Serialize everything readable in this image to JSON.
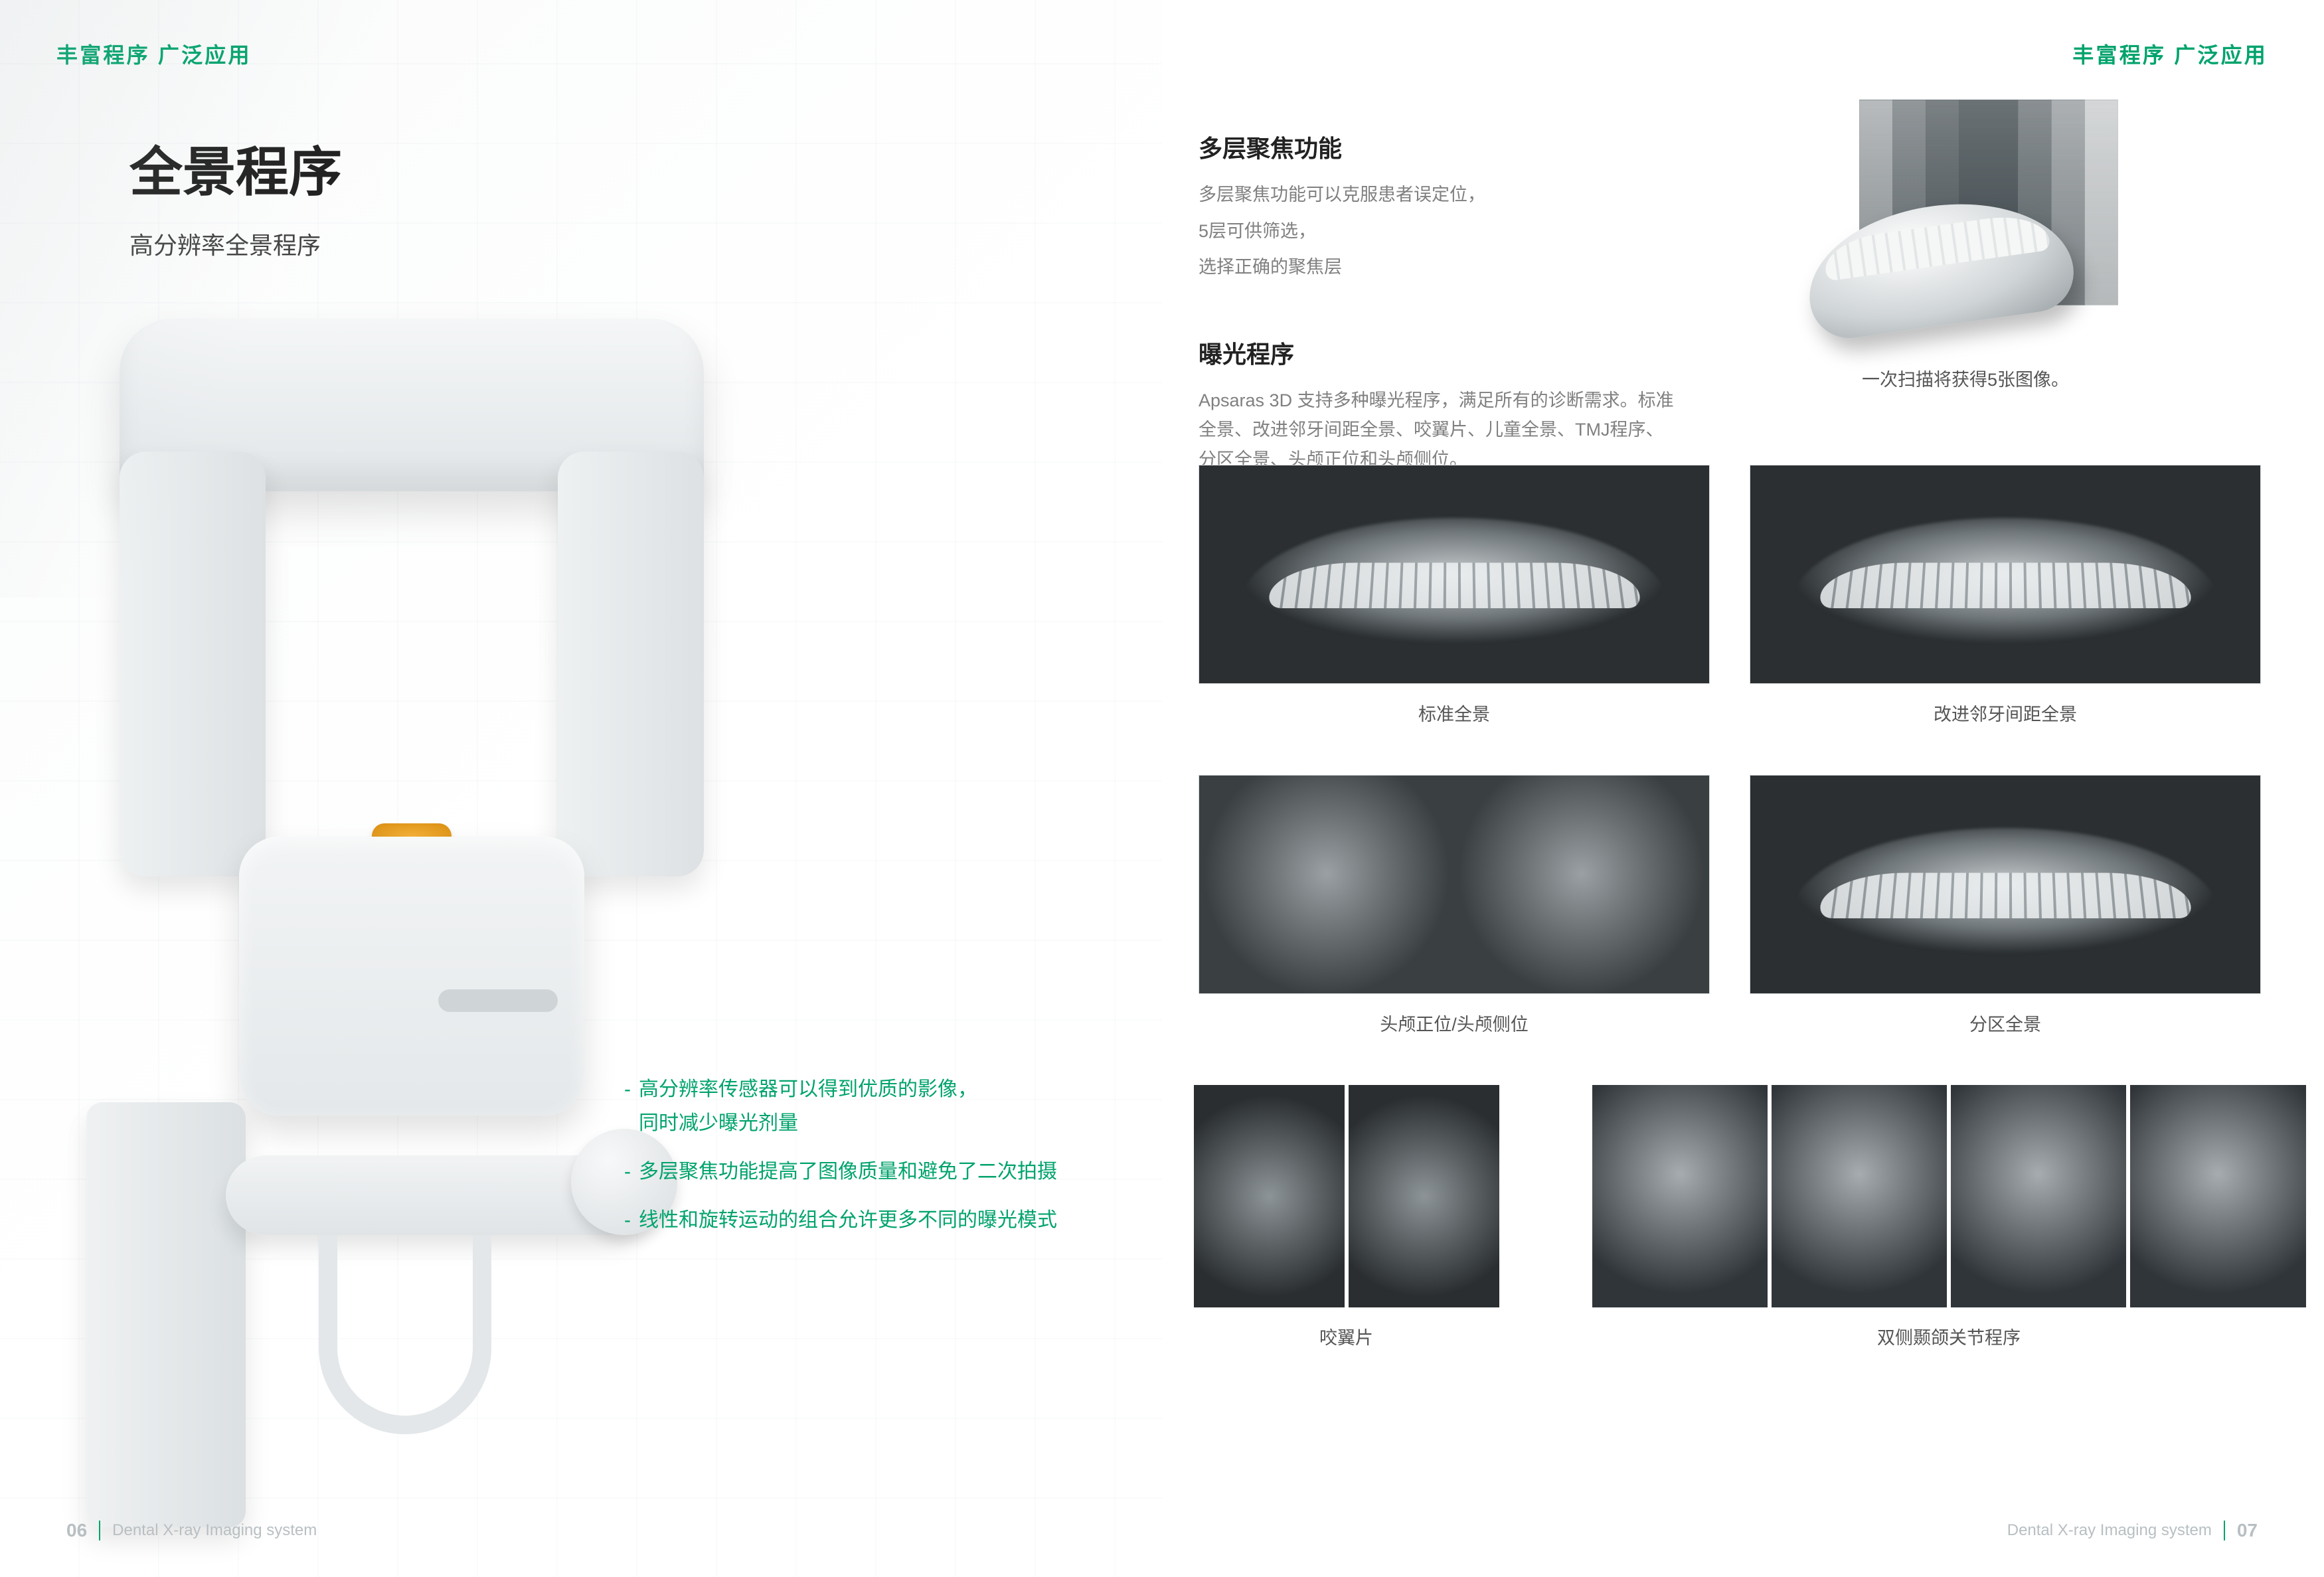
{
  "colors": {
    "accent": "#00a36c",
    "text_primary": "#222222",
    "text_secondary": "#808080",
    "bg": "#ffffff"
  },
  "header": {
    "label_left": "丰富程序 广泛应用",
    "label_right": "丰富程序 广泛应用"
  },
  "left": {
    "title": "全景程序",
    "subtitle": "高分辨率全景程序",
    "bullets": [
      "高分辨率传感器可以得到优质的影像，\n同时减少曝光剂量",
      "多层聚焦功能提高了图像质量和避免了二次拍摄",
      "线性和旋转运动的组合允许更多不同的曝光模式"
    ]
  },
  "right": {
    "section1": {
      "heading": "多层聚焦功能",
      "lines": [
        "多层聚焦功能可以克服患者误定位，",
        "5层可供筛选，",
        "选择正确的聚焦层"
      ]
    },
    "section2": {
      "heading": "曝光程序",
      "body": "Apsaras 3D 支持多种曝光程序，满足所有的诊断需求。标准全景、改进邻牙间距全景、咬翼片、儿童全景、TMJ程序、分区全景、头颅正位和头颅侧位。"
    },
    "jaw_caption": "一次扫描将获得5张图像。",
    "captions": {
      "r1a": "标准全景",
      "r1b": "改进邻牙间距全景",
      "r2a": "头颅正位/头颅侧位",
      "r2b": "分区全景",
      "r3a": "咬翼片",
      "r3b": "双侧颞颌关节程序"
    }
  },
  "footer": {
    "left_page_no": "06",
    "right_page_no": "07",
    "doc_title": "Dental X-ray Imaging system"
  }
}
